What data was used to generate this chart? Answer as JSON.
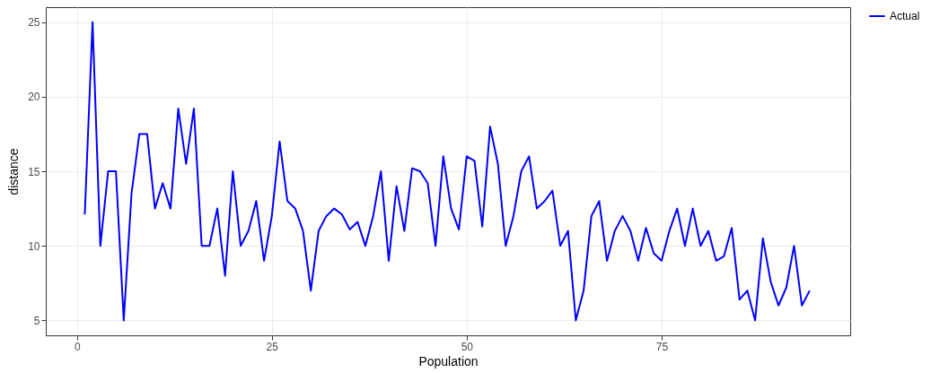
{
  "chart_data": {
    "type": "line",
    "xlabel": "Population",
    "ylabel": "distance",
    "x": [
      1,
      2,
      3,
      4,
      5,
      6,
      7,
      8,
      9,
      10,
      11,
      12,
      13,
      14,
      15,
      16,
      17,
      18,
      19,
      20,
      21,
      22,
      23,
      24,
      25,
      26,
      27,
      28,
      29,
      30,
      31,
      32,
      33,
      34,
      35,
      36,
      37,
      38,
      39,
      40,
      41,
      42,
      43,
      44,
      45,
      46,
      47,
      48,
      49,
      50,
      51,
      52,
      53,
      54,
      55,
      56,
      57,
      58,
      59,
      60,
      61,
      62,
      63,
      64,
      65,
      66,
      67,
      68,
      69,
      70,
      71,
      72,
      73,
      74,
      75,
      76,
      77,
      78,
      79,
      80,
      81,
      82,
      83,
      84,
      85,
      86,
      87,
      88,
      89,
      90,
      91,
      92,
      93,
      94
    ],
    "series": [
      {
        "name": "Actual",
        "color": "#0000ff",
        "values": [
          12.1,
          25,
          10,
          15,
          15,
          5,
          13.5,
          17.5,
          17.5,
          12.5,
          14.2,
          12.5,
          19.2,
          15.5,
          19.2,
          10,
          10,
          12.5,
          8,
          15,
          10,
          11,
          13,
          9,
          12,
          17,
          13,
          12.5,
          11,
          7,
          11,
          12,
          12.5,
          12.1,
          11.1,
          11.6,
          10,
          12,
          15,
          9,
          14,
          11,
          15.2,
          15,
          14.2,
          10,
          16,
          12.5,
          11.1,
          16,
          15.7,
          11.3,
          18,
          15.5,
          10,
          12,
          15,
          16,
          12.5,
          13,
          13.7,
          10,
          11,
          5,
          7,
          12,
          13,
          9,
          11,
          12,
          11,
          9,
          11.2,
          9.5,
          9,
          11,
          12.5,
          10,
          12.5,
          10,
          11,
          9,
          9.3,
          11.2,
          6.4,
          7,
          5,
          10.5,
          7.6,
          6,
          7.2,
          10,
          6,
          7
        ]
      }
    ],
    "xlim": [
      -4,
      99.2
    ],
    "xticks": [
      0,
      25,
      50,
      75
    ],
    "ylim": [
      4,
      26
    ],
    "yticks": [
      5,
      10,
      15,
      20,
      25
    ],
    "grid": true,
    "legend": "right",
    "line_style": "solid"
  }
}
